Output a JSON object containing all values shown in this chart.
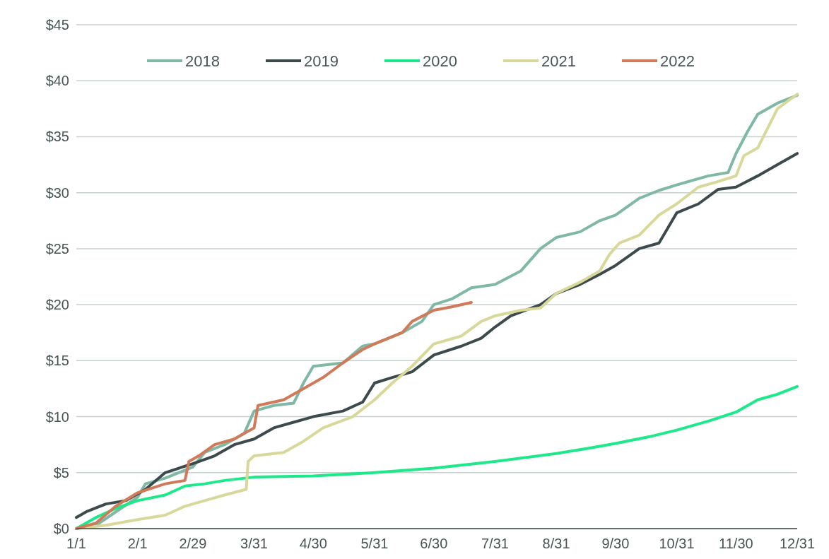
{
  "chart_data": {
    "type": "line",
    "legend": "top",
    "grid": "y",
    "ylim": [
      0,
      45
    ],
    "yticks": [
      {
        "value": 0,
        "label": "$0"
      },
      {
        "value": 5,
        "label": "$5"
      },
      {
        "value": 10,
        "label": "$10"
      },
      {
        "value": 15,
        "label": "$15"
      },
      {
        "value": 20,
        "label": "$20"
      },
      {
        "value": 25,
        "label": "$25"
      },
      {
        "value": 30,
        "label": "$30"
      },
      {
        "value": 35,
        "label": "$35"
      },
      {
        "value": 40,
        "label": "$40"
      },
      {
        "value": 45,
        "label": "$45"
      }
    ],
    "xlim": [
      "--01-01",
      "--12-31"
    ],
    "xticks": [
      {
        "value": "--01-01",
        "label": "1/1"
      },
      {
        "value": "--02-01",
        "label": "2/1"
      },
      {
        "value": "--02-29",
        "label": "2/29"
      },
      {
        "value": "--03-31",
        "label": "3/31"
      },
      {
        "value": "--04-30",
        "label": "4/30"
      },
      {
        "value": "--05-31",
        "label": "5/31"
      },
      {
        "value": "--06-30",
        "label": "6/30"
      },
      {
        "value": "--07-31",
        "label": "7/31"
      },
      {
        "value": "--08-31",
        "label": "8/31"
      },
      {
        "value": "--09-30",
        "label": "9/30"
      },
      {
        "value": "--10-31",
        "label": "10/31"
      },
      {
        "value": "--11-30",
        "label": "11/30"
      },
      {
        "value": "--12-31",
        "label": "12/31"
      }
    ],
    "series": [
      {
        "name": "2018",
        "color": "#7fb8a4",
        "x": [
          "--01-01",
          "--01-11",
          "--01-21",
          "--02-01",
          "--02-05",
          "--02-15",
          "--02-29",
          "--03-06",
          "--03-16",
          "--03-26",
          "--03-31",
          "--04-10",
          "--04-20",
          "--04-25",
          "--04-30",
          "--05-15",
          "--05-25",
          "--05-31",
          "--06-14",
          "--06-24",
          "--06-30",
          "--07-09",
          "--07-19",
          "--07-31",
          "--08-13",
          "--08-23",
          "--08-31",
          "--09-12",
          "--09-22",
          "--09-30",
          "--10-12",
          "--10-22",
          "--10-31",
          "--11-16",
          "--11-26",
          "--11-30",
          "--12-06",
          "--12-11",
          "--12-21",
          "--12-31"
        ],
        "values": [
          0,
          0.3,
          1.5,
          2.8,
          4,
          4.5,
          5.5,
          6.8,
          7.5,
          8.5,
          10.5,
          11,
          11.2,
          13,
          14.5,
          14.8,
          16.3,
          16.5,
          17.5,
          18.5,
          20,
          20.5,
          21.5,
          21.8,
          23,
          25,
          26,
          26.5,
          27.5,
          28,
          29.5,
          30.2,
          30.7,
          31.5,
          31.8,
          33.5,
          35.5,
          37,
          38,
          38.7
        ]
      },
      {
        "name": "2019",
        "color": "#3d4a4c",
        "x": [
          "--01-01",
          "--01-06",
          "--01-16",
          "--01-26",
          "--02-05",
          "--02-15",
          "--02-29",
          "--03-11",
          "--03-21",
          "--03-31",
          "--04-10",
          "--04-20",
          "--04-30",
          "--05-15",
          "--05-25",
          "--05-31",
          "--06-09",
          "--06-19",
          "--06-30",
          "--07-14",
          "--07-24",
          "--07-31",
          "--08-08",
          "--08-23",
          "--08-31",
          "--09-12",
          "--09-22",
          "--09-30",
          "--10-12",
          "--10-22",
          "--10-27",
          "--10-31",
          "--11-11",
          "--11-21",
          "--11-30",
          "--12-11",
          "--12-21",
          "--12-31"
        ],
        "values": [
          1,
          1.5,
          2.2,
          2.5,
          3.5,
          5,
          5.8,
          6.5,
          7.5,
          8,
          9,
          9.5,
          10,
          10.5,
          11.3,
          13,
          13.5,
          14,
          15.5,
          16.3,
          17,
          18,
          19,
          20,
          21,
          21.8,
          22.7,
          23.5,
          25,
          25.5,
          27,
          28.2,
          29,
          30.3,
          30.5,
          31.5,
          32.5,
          33.5
        ]
      },
      {
        "name": "2020",
        "color": "#1de98b",
        "x": [
          "--01-01",
          "--01-11",
          "--01-21",
          "--02-01",
          "--02-15",
          "--02-25",
          "--03-06",
          "--03-16",
          "--03-31",
          "--04-30",
          "--05-31",
          "--06-30",
          "--07-31",
          "--08-31",
          "--09-17",
          "--09-30",
          "--10-17",
          "--10-31",
          "--11-16",
          "--11-30",
          "--12-11",
          "--12-21",
          "--12-31"
        ],
        "values": [
          0,
          1,
          1.8,
          2.5,
          3,
          3.8,
          4,
          4.3,
          4.6,
          4.7,
          5,
          5.4,
          6,
          6.7,
          7.2,
          7.6,
          8.2,
          8.8,
          9.6,
          10.4,
          11.5,
          12,
          12.7
        ]
      },
      {
        "name": "2021",
        "color": "#d8d89a",
        "x": [
          "--01-01",
          "--01-16",
          "--02-01",
          "--02-15",
          "--02-25",
          "--03-06",
          "--03-16",
          "--03-27",
          "--03-28",
          "--03-31",
          "--04-15",
          "--04-25",
          "--05-05",
          "--05-20",
          "--05-31",
          "--06-09",
          "--06-19",
          "--06-30",
          "--07-14",
          "--07-24",
          "--07-31",
          "--08-13",
          "--08-23",
          "--08-31",
          "--09-12",
          "--09-22",
          "--09-27",
          "--10-02",
          "--10-12",
          "--10-22",
          "--10-31",
          "--11-11",
          "--11-21",
          "--11-30",
          "--12-04",
          "--12-11",
          "--12-21",
          "--12-31"
        ],
        "values": [
          0,
          0.3,
          0.8,
          1.2,
          2,
          2.5,
          3,
          3.5,
          6,
          6.5,
          6.8,
          7.8,
          9,
          10,
          11.5,
          13,
          14.5,
          16.5,
          17.2,
          18.5,
          19,
          19.5,
          19.7,
          21,
          22,
          23,
          24.5,
          25.5,
          26.2,
          28,
          29,
          30.5,
          31,
          31.5,
          33.3,
          34,
          37.5,
          38.8
        ]
      },
      {
        "name": "2022",
        "color": "#d07a5a",
        "x": [
          "--01-01",
          "--01-11",
          "--01-21",
          "--02-01",
          "--02-15",
          "--02-25",
          "--02-27",
          "--03-03",
          "--03-11",
          "--03-21",
          "--03-26",
          "--03-31",
          "--04-02",
          "--04-15",
          "--04-25",
          "--05-05",
          "--05-15",
          "--05-25",
          "--05-31",
          "--06-14",
          "--06-19",
          "--06-30",
          "--07-09",
          "--07-19"
        ],
        "values": [
          0,
          0.5,
          2,
          3.2,
          4,
          4.3,
          6,
          6.5,
          7.5,
          8,
          8.5,
          9,
          11,
          11.5,
          12.5,
          13.5,
          14.8,
          16,
          16.5,
          17.5,
          18.5,
          19.5,
          19.8,
          20.2
        ]
      }
    ]
  }
}
